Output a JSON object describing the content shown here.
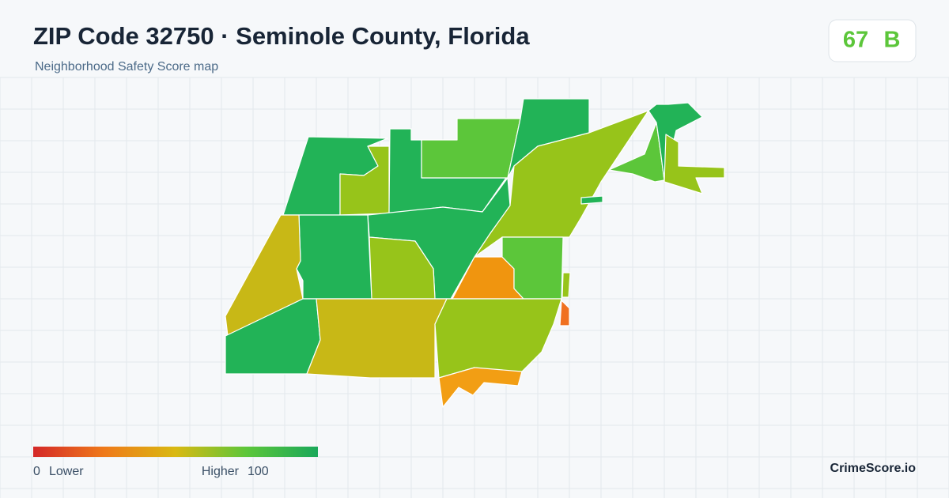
{
  "header": {
    "title": "ZIP Code 32750 · Seminole County, Florida",
    "subtitle": "Neighborhood Safety Score map"
  },
  "score": {
    "value": "67",
    "grade": "B"
  },
  "legend": {
    "min": "0",
    "min_label": "Lower",
    "max_label": "Higher",
    "max": "100"
  },
  "brand": "CrimeScore.io"
}
